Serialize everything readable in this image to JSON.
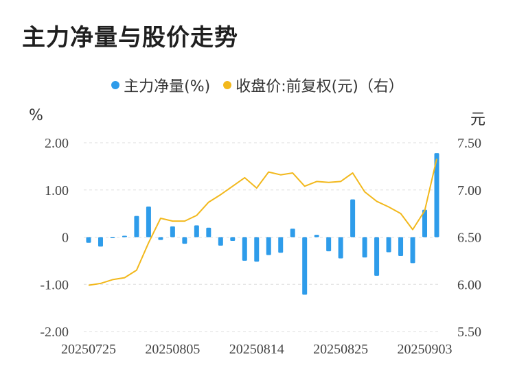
{
  "title": "主力净量与股价走势",
  "colors": {
    "bar": "#2e9cea",
    "line": "#f2b81c",
    "grid": "#dddddd"
  },
  "legend": [
    {
      "label": "主力净量(%)",
      "color": "#2e9cea"
    },
    {
      "label": "收盘价:前复权(元)（右）",
      "color": "#f2b81c"
    }
  ],
  "chart_data": {
    "type": "bar",
    "y_left_unit": "%",
    "y_right_unit": "元",
    "ylim_left": [
      -2.0,
      2.0
    ],
    "ylim_right": [
      5.5,
      7.5
    ],
    "yticks_left": [
      "2.00",
      "1.00",
      "0",
      "-1.00",
      "-2.00"
    ],
    "yticks_right": [
      "7.50",
      "7.00",
      "6.50",
      "6.00",
      "5.50"
    ],
    "xtick_labels": [
      {
        "label": "20250725",
        "index": 0
      },
      {
        "label": "20250805",
        "index": 7
      },
      {
        "label": "20250814",
        "index": 14
      },
      {
        "label": "20250825",
        "index": 21
      },
      {
        "label": "20250903",
        "index": 28
      }
    ],
    "grid": true,
    "series": [
      {
        "name": "主力净量(%)",
        "type": "bar",
        "axis": "left",
        "values": [
          -0.12,
          -0.2,
          -0.01,
          0.03,
          0.45,
          0.65,
          -0.06,
          0.23,
          -0.14,
          0.25,
          0.2,
          -0.18,
          -0.08,
          -0.5,
          -0.52,
          -0.38,
          -0.33,
          0.18,
          -1.22,
          0.05,
          -0.3,
          -0.45,
          0.8,
          -0.43,
          -0.82,
          -0.32,
          -0.4,
          -0.55,
          0.58,
          1.78
        ]
      },
      {
        "name": "收盘价:前复权(元)（右）",
        "type": "line",
        "axis": "right",
        "values": [
          5.99,
          6.01,
          6.05,
          6.07,
          6.15,
          6.44,
          6.7,
          6.67,
          6.67,
          6.73,
          6.87,
          6.95,
          7.04,
          7.13,
          7.02,
          7.19,
          7.16,
          7.18,
          7.04,
          7.09,
          7.08,
          7.09,
          7.18,
          6.98,
          6.88,
          6.82,
          6.75,
          6.58,
          6.78,
          7.33
        ]
      }
    ]
  }
}
